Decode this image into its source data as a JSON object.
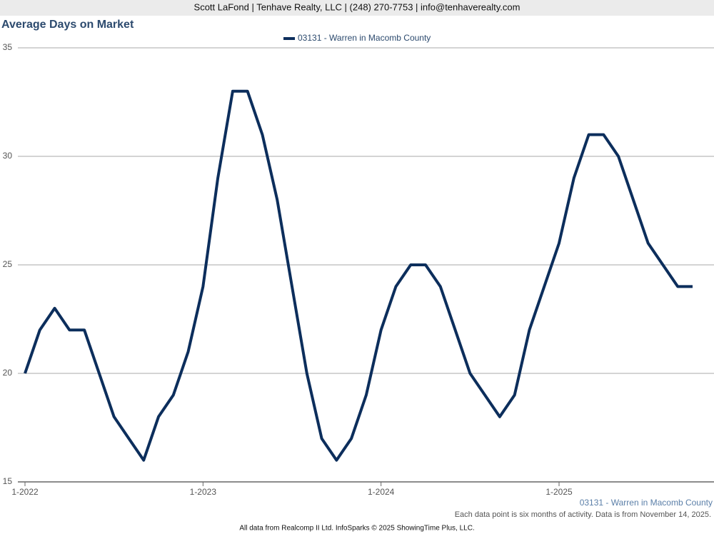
{
  "chart_data": {
    "type": "line",
    "header": "Scott LaFond | Tenhave Realty, LLC | (248) 270-7753 | info@tenhaverealty.com",
    "title": "Average Days on Market",
    "categories": [
      "1-2022",
      null,
      null,
      null,
      null,
      null,
      null,
      null,
      null,
      null,
      null,
      null,
      "1-2023",
      null,
      null,
      null,
      null,
      null,
      null,
      null,
      null,
      null,
      null,
      null,
      "1-2024",
      null,
      null,
      null,
      null,
      null,
      null,
      null,
      null,
      null,
      null,
      null,
      "1-2025",
      null,
      null,
      null,
      null,
      null,
      null,
      null,
      null,
      null
    ],
    "series": [
      {
        "name": "03131 - Warren in Macomb County",
        "color": "#0c2e5c",
        "values": [
          20,
          22,
          23,
          22,
          22,
          20,
          18,
          17,
          16,
          18,
          19,
          21,
          24,
          29,
          33,
          33,
          31,
          28,
          24,
          20,
          17,
          16,
          17,
          19,
          22,
          24,
          25,
          25,
          24,
          22,
          20,
          19,
          18,
          19,
          22,
          24,
          26,
          29,
          31,
          31,
          30,
          28,
          26,
          25,
          24,
          24
        ]
      }
    ],
    "ylim": [
      15,
      35
    ],
    "yticks": [
      15,
      20,
      25,
      30,
      35
    ],
    "grid": true,
    "series_label": "03131 - Warren in Macomb County",
    "note": "Each data point is six months of activity. Data is from November 14, 2025.",
    "footer": "All data from Realcomp II Ltd. InfoSparks © 2025 ShowingTime Plus, LLC."
  }
}
